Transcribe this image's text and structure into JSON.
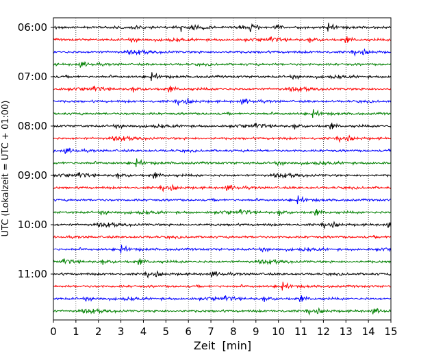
{
  "chart_data": {
    "type": "line",
    "subtype": "helicorder",
    "xlabel": "Zeit  [min]",
    "ylabel": "UTC (Lokalzeit = UTC + 01:00)",
    "xlim": [
      0,
      15
    ],
    "x_ticks": [
      "0",
      "1",
      "2",
      "3",
      "4",
      "5",
      "6",
      "7",
      "8",
      "9",
      "10",
      "11",
      "12",
      "13",
      "14",
      "15"
    ],
    "y_tick_labels": [
      "06:00",
      "07:00",
      "08:00",
      "09:00",
      "10:00",
      "11:00"
    ],
    "grid": "vertical dotted",
    "colors": [
      "#000000",
      "#ff0000",
      "#0000ff",
      "#008000"
    ],
    "series": [
      {
        "start": "06:00",
        "color": "#000000"
      },
      {
        "start": "06:15",
        "color": "#ff0000"
      },
      {
        "start": "06:30",
        "color": "#0000ff"
      },
      {
        "start": "06:45",
        "color": "#008000"
      },
      {
        "start": "07:00",
        "color": "#000000"
      },
      {
        "start": "07:15",
        "color": "#ff0000"
      },
      {
        "start": "07:30",
        "color": "#0000ff"
      },
      {
        "start": "07:45",
        "color": "#008000"
      },
      {
        "start": "08:00",
        "color": "#000000"
      },
      {
        "start": "08:15",
        "color": "#ff0000"
      },
      {
        "start": "08:30",
        "color": "#0000ff"
      },
      {
        "start": "08:45",
        "color": "#008000"
      },
      {
        "start": "09:00",
        "color": "#000000"
      },
      {
        "start": "09:15",
        "color": "#ff0000"
      },
      {
        "start": "09:30",
        "color": "#0000ff"
      },
      {
        "start": "09:45",
        "color": "#008000"
      },
      {
        "start": "10:00",
        "color": "#000000"
      },
      {
        "start": "10:15",
        "color": "#ff0000"
      },
      {
        "start": "10:30",
        "color": "#0000ff"
      },
      {
        "start": "10:45",
        "color": "#008000"
      },
      {
        "start": "11:00",
        "color": "#000000"
      },
      {
        "start": "11:15",
        "color": "#ff0000"
      },
      {
        "start": "11:30",
        "color": "#0000ff"
      },
      {
        "start": "11:45",
        "color": "#008000"
      }
    ]
  }
}
